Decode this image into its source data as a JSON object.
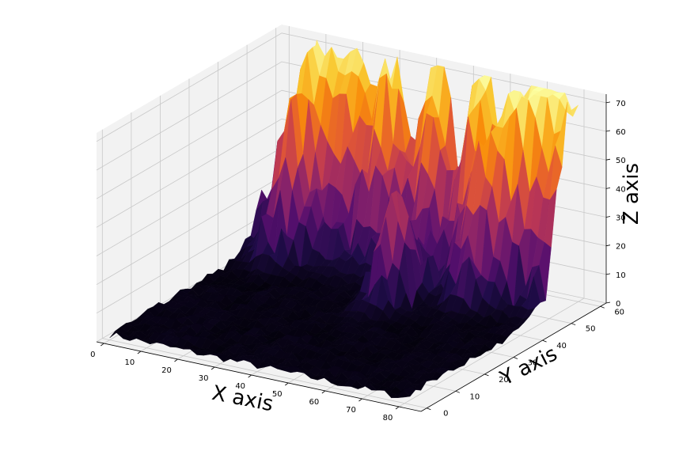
{
  "chart_data": {
    "type": "surface3d",
    "title": "",
    "xlabel": "X axis",
    "ylabel": "Y axis",
    "zlabel": "Z axis",
    "x_ticks": [
      0,
      10,
      20,
      30,
      40,
      50,
      60,
      70,
      80
    ],
    "y_ticks": [
      0,
      10,
      20,
      30,
      40,
      50,
      60
    ],
    "z_ticks": [
      0,
      10,
      20,
      30,
      40,
      50,
      60,
      70
    ],
    "xlim": [
      -2,
      86
    ],
    "ylim": [
      -2,
      62
    ],
    "zlim": [
      0,
      73
    ],
    "colormap": "inferno",
    "grid": true,
    "pane_color": "#f2f2f2",
    "grid_color": "#c8c8c8",
    "surface_summary": {
      "x_range": [
        0,
        80
      ],
      "y_range": [
        0,
        60
      ],
      "baseline_z": 2,
      "max_z": 72,
      "peaks": [
        {
          "x": 10,
          "y": 50,
          "z": 60
        },
        {
          "x": 12,
          "y": 60,
          "z": 70
        },
        {
          "x": 20,
          "y": 60,
          "z": 65
        },
        {
          "x": 30,
          "y": 58,
          "z": 60
        },
        {
          "x": 42,
          "y": 60,
          "z": 62
        },
        {
          "x": 55,
          "y": 58,
          "z": 68
        },
        {
          "x": 62,
          "y": 50,
          "z": 60
        },
        {
          "x": 68,
          "y": 56,
          "z": 70
        },
        {
          "x": 72,
          "y": 58,
          "z": 65
        },
        {
          "x": 80,
          "y": 58,
          "z": 67
        },
        {
          "x": 45,
          "y": 40,
          "z": 48
        }
      ]
    }
  }
}
